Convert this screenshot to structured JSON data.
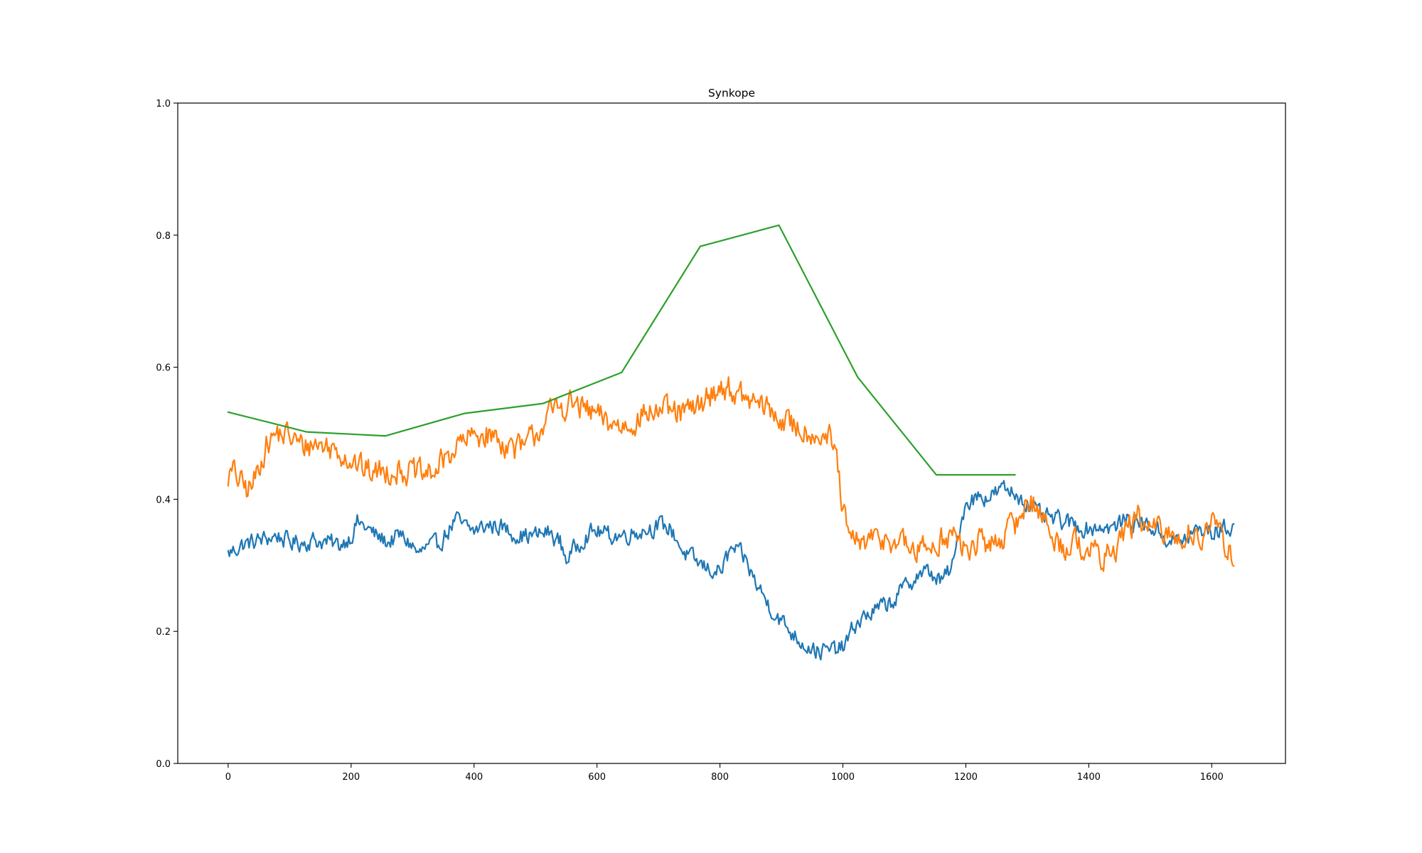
{
  "chart_data": {
    "type": "line",
    "title": "Synkope",
    "xlabel": "",
    "ylabel": "",
    "xlim": [
      -82,
      1720
    ],
    "ylim": [
      0.0,
      1.0
    ],
    "x_ticks": [
      0,
      200,
      400,
      600,
      800,
      1000,
      1200,
      1400,
      1600
    ],
    "x_tick_labels": [
      "0",
      "200",
      "400",
      "600",
      "800",
      "1000",
      "1200",
      "1400",
      "1600"
    ],
    "y_ticks": [
      0.0,
      0.2,
      0.4,
      0.6,
      0.8,
      1.0
    ],
    "y_tick_labels": [
      "0.0",
      "0.2",
      "0.4",
      "0.6",
      "0.8",
      "1.0"
    ],
    "grid": false,
    "legend": "none",
    "series": [
      {
        "color": "#1f77b4",
        "noise": 0.012,
        "x": [
          0,
          20,
          40,
          60,
          80,
          100,
          120,
          140,
          160,
          180,
          200,
          210,
          220,
          240,
          260,
          280,
          300,
          310,
          320,
          340,
          360,
          370,
          380,
          400,
          420,
          440,
          460,
          480,
          500,
          520,
          540,
          550,
          560,
          580,
          600,
          620,
          640,
          660,
          680,
          700,
          720,
          730,
          740,
          760,
          780,
          800,
          820,
          840,
          860,
          880,
          900,
          920,
          940,
          960,
          980,
          1000,
          1010,
          1020,
          1040,
          1060,
          1080,
          1100,
          1120,
          1140,
          1160,
          1180,
          1190,
          1200,
          1220,
          1240,
          1260,
          1280,
          1300,
          1320,
          1340,
          1360,
          1380,
          1400,
          1420,
          1440,
          1460,
          1480,
          1500,
          1520,
          1540,
          1560,
          1580,
          1600,
          1620,
          1636
        ],
        "y": [
          0.317,
          0.33,
          0.335,
          0.34,
          0.345,
          0.335,
          0.335,
          0.338,
          0.335,
          0.33,
          0.345,
          0.365,
          0.36,
          0.345,
          0.335,
          0.345,
          0.33,
          0.315,
          0.325,
          0.33,
          0.355,
          0.37,
          0.36,
          0.352,
          0.36,
          0.36,
          0.35,
          0.345,
          0.345,
          0.35,
          0.335,
          0.31,
          0.32,
          0.345,
          0.352,
          0.345,
          0.345,
          0.35,
          0.355,
          0.36,
          0.355,
          0.34,
          0.32,
          0.305,
          0.295,
          0.29,
          0.325,
          0.31,
          0.27,
          0.24,
          0.215,
          0.195,
          0.18,
          0.17,
          0.17,
          0.175,
          0.19,
          0.21,
          0.225,
          0.235,
          0.245,
          0.265,
          0.285,
          0.29,
          0.275,
          0.3,
          0.36,
          0.395,
          0.405,
          0.405,
          0.415,
          0.41,
          0.395,
          0.375,
          0.37,
          0.365,
          0.36,
          0.355,
          0.36,
          0.355,
          0.37,
          0.365,
          0.36,
          0.345,
          0.335,
          0.34,
          0.355,
          0.35,
          0.355,
          0.36
        ]
      },
      {
        "color": "#ff7f0e",
        "noise": 0.018,
        "x": [
          0,
          10,
          20,
          30,
          40,
          50,
          60,
          80,
          100,
          120,
          140,
          160,
          180,
          200,
          220,
          240,
          260,
          280,
          300,
          320,
          340,
          360,
          380,
          400,
          420,
          440,
          460,
          480,
          500,
          520,
          540,
          560,
          580,
          600,
          620,
          640,
          660,
          680,
          700,
          720,
          740,
          760,
          780,
          800,
          820,
          840,
          860,
          880,
          900,
          920,
          940,
          960,
          980,
          990,
          1000,
          1010,
          1020,
          1040,
          1060,
          1080,
          1100,
          1120,
          1140,
          1160,
          1180,
          1200,
          1220,
          1240,
          1260,
          1280,
          1300,
          1320,
          1340,
          1360,
          1380,
          1400,
          1420,
          1440,
          1460,
          1480,
          1500,
          1520,
          1540,
          1560,
          1580,
          1600,
          1620,
          1636
        ],
        "y": [
          0.435,
          0.44,
          0.425,
          0.415,
          0.42,
          0.45,
          0.48,
          0.5,
          0.495,
          0.48,
          0.485,
          0.48,
          0.475,
          0.46,
          0.445,
          0.44,
          0.445,
          0.445,
          0.44,
          0.435,
          0.445,
          0.47,
          0.485,
          0.495,
          0.5,
          0.49,
          0.48,
          0.475,
          0.5,
          0.525,
          0.54,
          0.545,
          0.535,
          0.525,
          0.515,
          0.51,
          0.52,
          0.53,
          0.535,
          0.53,
          0.53,
          0.535,
          0.555,
          0.57,
          0.565,
          0.55,
          0.545,
          0.535,
          0.52,
          0.51,
          0.505,
          0.5,
          0.49,
          0.46,
          0.38,
          0.34,
          0.335,
          0.335,
          0.34,
          0.34,
          0.33,
          0.32,
          0.33,
          0.34,
          0.345,
          0.32,
          0.335,
          0.33,
          0.345,
          0.36,
          0.4,
          0.385,
          0.34,
          0.33,
          0.335,
          0.325,
          0.31,
          0.32,
          0.355,
          0.37,
          0.355,
          0.35,
          0.34,
          0.35,
          0.345,
          0.36,
          0.335,
          0.315
        ]
      },
      {
        "color": "#2ca02c",
        "noise": 0,
        "x": [
          0,
          128,
          256,
          384,
          512,
          640,
          768,
          896,
          1024,
          1152,
          1280
        ],
        "y": [
          0.532,
          0.502,
          0.496,
          0.53,
          0.545,
          0.592,
          0.783,
          0.815,
          0.585,
          0.437,
          0.437
        ]
      }
    ]
  }
}
